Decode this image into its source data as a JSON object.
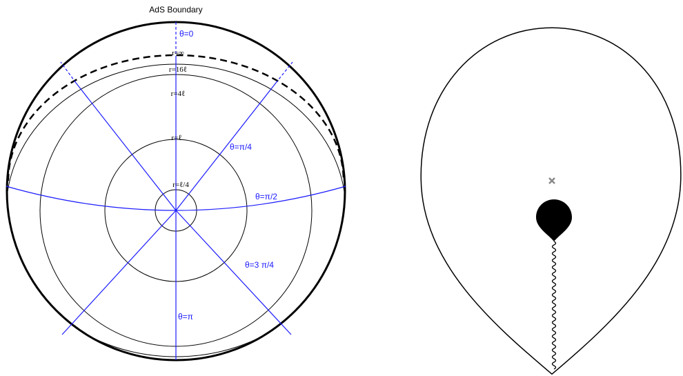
{
  "title": "AdS Boundary",
  "radial_labels": [
    "r=∞",
    "r=16ℓ",
    "r=4ℓ",
    "r=ℓ",
    "r=ℓ/4"
  ],
  "angle_labels": [
    "θ=0",
    "θ=π/4",
    "θ=π/2",
    "θ=3 π/4",
    "θ=π"
  ]
}
